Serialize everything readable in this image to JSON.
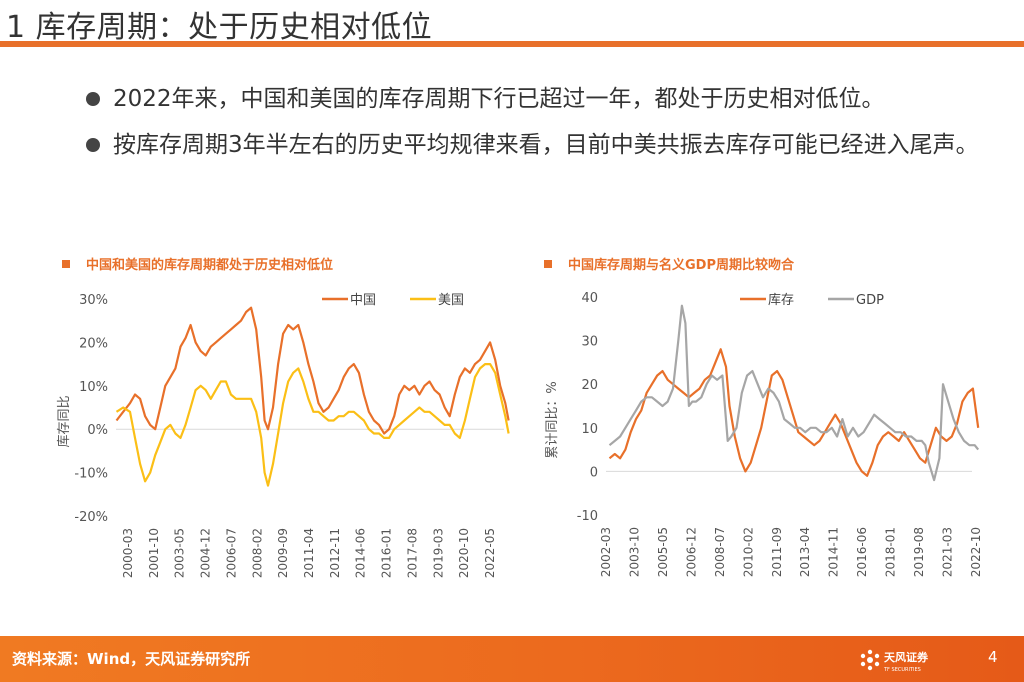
{
  "slide": {
    "title": "1 库存周期：处于历史相对低位",
    "bullets": [
      "2022年来，中国和美国的库存周期下行已超过一年，都处于历史相对低位。",
      "按库存周期3年半左右的历史平均规律来看，目前中美共振去库存可能已经进入尾声。"
    ],
    "footer_source": "资料来源：Wind，天风证券研究所",
    "logo_text": "天风证券",
    "logo_subtext": "TF SECURITIES",
    "page_number": "4",
    "colors": {
      "accent": "#e8702a",
      "series_orange": "#e8702a",
      "series_yellow": "#fbbf16",
      "series_gray": "#a6a6a6"
    }
  },
  "chart_data": [
    {
      "type": "line",
      "title": "中国和美国的库存周期都处于历史相对低位",
      "ylabel": "库存同比",
      "xlabel": "",
      "ylim": [
        -20,
        30
      ],
      "yticks": [
        -20,
        -10,
        0,
        10,
        20,
        30
      ],
      "ytick_labels": [
        "-20%",
        "-10%",
        "0%",
        "10%",
        "20%",
        "30%"
      ],
      "xlim": [
        2000.17,
        2023.7
      ],
      "xtick_labels": [
        "2000-03",
        "2001-10",
        "2003-05",
        "2004-12",
        "2006-07",
        "2008-02",
        "2009-09",
        "2011-04",
        "2012-11",
        "2014-06",
        "2016-01",
        "2017-08",
        "2019-03",
        "2020-10",
        "2022-05"
      ],
      "legend": "top-right",
      "series": [
        {
          "name": "中国",
          "color": "#e8702a",
          "x": [
            2000.2,
            2000.6,
            2001.0,
            2001.3,
            2001.6,
            2001.9,
            2002.2,
            2002.5,
            2002.8,
            2003.1,
            2003.4,
            2003.7,
            2004.0,
            2004.3,
            2004.6,
            2004.9,
            2005.2,
            2005.5,
            2005.8,
            2006.1,
            2006.4,
            2006.7,
            2007.0,
            2007.3,
            2007.6,
            2007.9,
            2008.2,
            2008.5,
            2008.8,
            2009.0,
            2009.2,
            2009.5,
            2009.8,
            2010.1,
            2010.4,
            2010.7,
            2011.0,
            2011.3,
            2011.6,
            2011.9,
            2012.2,
            2012.5,
            2012.8,
            2013.1,
            2013.4,
            2013.7,
            2014.0,
            2014.3,
            2014.6,
            2014.9,
            2015.2,
            2015.5,
            2015.8,
            2016.1,
            2016.4,
            2016.7,
            2017.0,
            2017.3,
            2017.6,
            2017.9,
            2018.2,
            2018.5,
            2018.8,
            2019.1,
            2019.4,
            2019.7,
            2020.0,
            2020.3,
            2020.6,
            2020.9,
            2021.2,
            2021.5,
            2021.8,
            2022.1,
            2022.4,
            2022.7,
            2023.0,
            2023.3,
            2023.5
          ],
          "values": [
            2,
            4,
            6,
            8,
            7,
            3,
            1,
            0,
            5,
            10,
            12,
            14,
            19,
            21,
            24,
            20,
            18,
            17,
            19,
            20,
            21,
            22,
            23,
            24,
            25,
            27,
            28,
            23,
            12,
            2,
            0,
            5,
            15,
            22,
            24,
            23,
            24,
            20,
            15,
            11,
            6,
            4,
            5,
            7,
            9,
            12,
            14,
            15,
            13,
            8,
            4,
            2,
            1,
            -1,
            0,
            3,
            8,
            10,
            9,
            10,
            8,
            10,
            11,
            9,
            8,
            5,
            3,
            8,
            12,
            14,
            13,
            15,
            16,
            18,
            20,
            16,
            10,
            6,
            2
          ]
        },
        {
          "name": "美国",
          "color": "#fbbf16",
          "x": [
            2000.2,
            2000.6,
            2001.0,
            2001.3,
            2001.6,
            2001.9,
            2002.2,
            2002.5,
            2002.8,
            2003.1,
            2003.4,
            2003.7,
            2004.0,
            2004.3,
            2004.6,
            2004.9,
            2005.2,
            2005.5,
            2005.8,
            2006.1,
            2006.4,
            2006.7,
            2007.0,
            2007.3,
            2007.6,
            2007.9,
            2008.2,
            2008.5,
            2008.8,
            2009.0,
            2009.2,
            2009.5,
            2009.8,
            2010.1,
            2010.4,
            2010.7,
            2011.0,
            2011.3,
            2011.6,
            2011.9,
            2012.2,
            2012.5,
            2012.8,
            2013.1,
            2013.4,
            2013.7,
            2014.0,
            2014.3,
            2014.6,
            2014.9,
            2015.2,
            2015.5,
            2015.8,
            2016.1,
            2016.4,
            2016.7,
            2017.0,
            2017.3,
            2017.6,
            2017.9,
            2018.2,
            2018.5,
            2018.8,
            2019.1,
            2019.4,
            2019.7,
            2020.0,
            2020.3,
            2020.6,
            2020.9,
            2021.2,
            2021.5,
            2021.8,
            2022.1,
            2022.4,
            2022.7,
            2023.0,
            2023.3,
            2023.5
          ],
          "values": [
            4,
            5,
            4,
            -2,
            -8,
            -12,
            -10,
            -6,
            -3,
            0,
            1,
            -1,
            -2,
            1,
            5,
            9,
            10,
            9,
            7,
            9,
            11,
            11,
            8,
            7,
            7,
            7,
            7,
            4,
            -2,
            -10,
            -13,
            -8,
            -1,
            6,
            11,
            13,
            14,
            11,
            7,
            4,
            4,
            3,
            2,
            2,
            3,
            3,
            4,
            4,
            3,
            2,
            0,
            -1,
            -1,
            -2,
            -2,
            0,
            1,
            2,
            3,
            4,
            5,
            4,
            4,
            3,
            2,
            1,
            1,
            -1,
            -2,
            2,
            7,
            12,
            14,
            15,
            15,
            13,
            8,
            3,
            -1
          ]
        }
      ]
    },
    {
      "type": "line",
      "title": "中国库存周期与名义GDP周期比较吻合",
      "ylabel": "累计同比：%",
      "xlabel": "",
      "ylim": [
        -10,
        40
      ],
      "yticks": [
        -10,
        0,
        10,
        20,
        30,
        40
      ],
      "ytick_labels": [
        "-10",
        "0",
        "10",
        "20",
        "30",
        "40"
      ],
      "xlim": [
        2002.0,
        2023.2
      ],
      "xtick_labels": [
        "2002-03",
        "2003-10",
        "2005-05",
        "2006-12",
        "2008-07",
        "2010-02",
        "2011-09",
        "2013-04",
        "2014-11",
        "2016-06",
        "2018-01",
        "2019-08",
        "2021-03",
        "2022-10"
      ],
      "legend": "top-center",
      "series": [
        {
          "name": "库存",
          "color": "#e8702a",
          "x": [
            2002.2,
            2002.5,
            2002.8,
            2003.1,
            2003.4,
            2003.7,
            2004.0,
            2004.3,
            2004.6,
            2004.9,
            2005.2,
            2005.5,
            2005.8,
            2006.1,
            2006.4,
            2006.7,
            2007.0,
            2007.3,
            2007.6,
            2007.9,
            2008.2,
            2008.5,
            2008.8,
            2009.0,
            2009.3,
            2009.6,
            2009.9,
            2010.2,
            2010.5,
            2010.8,
            2011.1,
            2011.4,
            2011.7,
            2012.0,
            2012.3,
            2012.6,
            2012.9,
            2013.2,
            2013.5,
            2013.8,
            2014.1,
            2014.4,
            2014.7,
            2015.0,
            2015.3,
            2015.6,
            2015.9,
            2016.2,
            2016.5,
            2016.8,
            2017.1,
            2017.4,
            2017.7,
            2018.0,
            2018.3,
            2018.6,
            2018.9,
            2019.2,
            2019.5,
            2019.8,
            2020.1,
            2020.4,
            2020.7,
            2021.0,
            2021.3,
            2021.6,
            2021.9,
            2022.2,
            2022.5,
            2022.8,
            2023.1
          ],
          "values": [
            3,
            4,
            3,
            5,
            9,
            12,
            14,
            18,
            20,
            22,
            23,
            21,
            20,
            19,
            18,
            17,
            18,
            19,
            21,
            22,
            25,
            28,
            24,
            15,
            8,
            3,
            0,
            2,
            6,
            10,
            16,
            22,
            23,
            21,
            17,
            13,
            9,
            8,
            7,
            6,
            7,
            9,
            11,
            13,
            11,
            8,
            5,
            2,
            0,
            -1,
            2,
            6,
            8,
            9,
            8,
            7,
            9,
            7,
            5,
            3,
            2,
            6,
            10,
            8,
            7,
            8,
            11,
            16,
            18,
            19,
            10
          ]
        },
        {
          "name": "GDP",
          "color": "#a6a6a6",
          "x": [
            2002.2,
            2002.5,
            2002.8,
            2003.1,
            2003.4,
            2003.7,
            2004.0,
            2004.3,
            2004.6,
            2004.9,
            2005.2,
            2005.5,
            2005.8,
            2006.1,
            2006.3,
            2006.5,
            2006.7,
            2006.9,
            2007.1,
            2007.4,
            2007.7,
            2008.0,
            2008.3,
            2008.6,
            2008.9,
            2009.1,
            2009.4,
            2009.7,
            2010.0,
            2010.3,
            2010.6,
            2010.9,
            2011.2,
            2011.5,
            2011.8,
            2012.1,
            2012.4,
            2012.7,
            2013.0,
            2013.3,
            2013.6,
            2013.9,
            2014.2,
            2014.5,
            2014.8,
            2015.1,
            2015.4,
            2015.7,
            2016.0,
            2016.3,
            2016.6,
            2016.9,
            2017.2,
            2017.5,
            2017.8,
            2018.1,
            2018.4,
            2018.7,
            2019.0,
            2019.3,
            2019.6,
            2019.9,
            2020.1,
            2020.3,
            2020.6,
            2020.9,
            2021.1,
            2021.4,
            2021.7,
            2022.0,
            2022.3,
            2022.6,
            2022.9,
            2023.1
          ],
          "values": [
            6,
            7,
            8,
            10,
            12,
            14,
            16,
            17,
            17,
            16,
            15,
            16,
            19,
            30,
            38,
            34,
            15,
            16,
            16,
            17,
            20,
            22,
            21,
            22,
            7,
            8,
            10,
            18,
            22,
            23,
            20,
            17,
            19,
            18,
            16,
            12,
            11,
            10,
            10,
            9,
            10,
            10,
            9,
            9,
            10,
            8,
            12,
            8,
            10,
            8,
            9,
            11,
            13,
            12,
            11,
            10,
            9,
            9,
            8,
            8,
            7,
            7,
            6,
            2,
            -2,
            3,
            20,
            16,
            12,
            9,
            7,
            6,
            6,
            5
          ]
        }
      ]
    }
  ]
}
